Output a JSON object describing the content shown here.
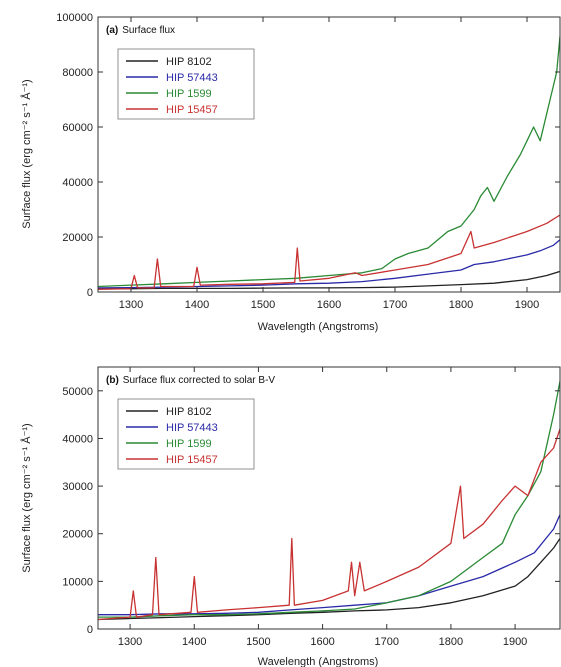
{
  "chart_data": [
    {
      "type": "line",
      "title": "(a) Surface flux",
      "title_prefix": "(a)",
      "title_text": "Surface flux",
      "xlabel": "Wavelength (Angstroms)",
      "ylabel": "Surface flux (erg cm⁻² s⁻¹ Å⁻¹)",
      "xlim": [
        1250,
        1950
      ],
      "ylim": [
        0,
        100000
      ],
      "x_ticks": [
        1300,
        1400,
        1500,
        1600,
        1700,
        1800,
        1900
      ],
      "y_ticks": [
        0,
        20000,
        40000,
        60000,
        80000,
        100000
      ],
      "legend_position": "top-left",
      "series": [
        {
          "name": "HIP 8102",
          "color": "#222222",
          "points": [
            [
              1250,
              1200
            ],
            [
              1300,
              1200
            ],
            [
              1350,
              1300
            ],
            [
              1400,
              1300
            ],
            [
              1450,
              1300
            ],
            [
              1500,
              1400
            ],
            [
              1550,
              1500
            ],
            [
              1600,
              1500
            ],
            [
              1650,
              1600
            ],
            [
              1700,
              1800
            ],
            [
              1750,
              2200
            ],
            [
              1800,
              2700
            ],
            [
              1850,
              3200
            ],
            [
              1900,
              4500
            ],
            [
              1930,
              6000
            ],
            [
              1950,
              7500
            ]
          ]
        },
        {
          "name": "HIP 57443",
          "color": "#2a2aa8",
          "points": [
            [
              1250,
              1500
            ],
            [
              1300,
              1600
            ],
            [
              1350,
              1800
            ],
            [
              1400,
              2000
            ],
            [
              1450,
              2200
            ],
            [
              1500,
              2500
            ],
            [
              1550,
              3000
            ],
            [
              1600,
              3200
            ],
            [
              1650,
              3800
            ],
            [
              1700,
              5000
            ],
            [
              1750,
              6500
            ],
            [
              1800,
              8000
            ],
            [
              1820,
              10000
            ],
            [
              1850,
              11000
            ],
            [
              1880,
              12500
            ],
            [
              1900,
              13500
            ],
            [
              1920,
              15000
            ],
            [
              1940,
              17000
            ],
            [
              1950,
              19000
            ]
          ]
        },
        {
          "name": "HIP 1599",
          "color": "#2a8a35",
          "points": [
            [
              1250,
              2000
            ],
            [
              1300,
              2500
            ],
            [
              1350,
              3000
            ],
            [
              1400,
              3500
            ],
            [
              1450,
              4000
            ],
            [
              1500,
              4500
            ],
            [
              1550,
              5000
            ],
            [
              1600,
              6000
            ],
            [
              1650,
              7000
            ],
            [
              1680,
              8500
            ],
            [
              1700,
              12000
            ],
            [
              1720,
              14000
            ],
            [
              1750,
              16000
            ],
            [
              1780,
              22000
            ],
            [
              1800,
              24000
            ],
            [
              1820,
              30000
            ],
            [
              1830,
              35000
            ],
            [
              1840,
              38000
            ],
            [
              1850,
              33000
            ],
            [
              1870,
              42000
            ],
            [
              1890,
              50000
            ],
            [
              1900,
              55000
            ],
            [
              1910,
              60000
            ],
            [
              1920,
              55000
            ],
            [
              1935,
              70000
            ],
            [
              1945,
              80000
            ],
            [
              1950,
              93000
            ]
          ]
        },
        {
          "name": "HIP 15457",
          "color": "#c83232",
          "points": [
            [
              1250,
              1000
            ],
            [
              1300,
              1200
            ],
            [
              1305,
              6000
            ],
            [
              1310,
              1500
            ],
            [
              1335,
              1500
            ],
            [
              1340,
              12000
            ],
            [
              1345,
              2000
            ],
            [
              1395,
              2000
            ],
            [
              1400,
              9000
            ],
            [
              1405,
              2500
            ],
            [
              1450,
              2800
            ],
            [
              1500,
              3000
            ],
            [
              1548,
              3500
            ],
            [
              1552,
              16000
            ],
            [
              1556,
              4000
            ],
            [
              1600,
              5000
            ],
            [
              1640,
              7000
            ],
            [
              1650,
              6000
            ],
            [
              1700,
              8000
            ],
            [
              1750,
              10000
            ],
            [
              1800,
              14000
            ],
            [
              1815,
              22000
            ],
            [
              1820,
              16000
            ],
            [
              1850,
              18000
            ],
            [
              1900,
              22000
            ],
            [
              1930,
              25000
            ],
            [
              1950,
              28000
            ]
          ]
        }
      ]
    },
    {
      "type": "line",
      "title": "(b) Surface flux corrected to solar B-V",
      "title_prefix": "(b)",
      "title_text": "Surface flux corrected to solar B-V",
      "xlabel": "Wavelength (Angstroms)",
      "ylabel": "Surface flux (erg cm⁻² s⁻¹ Å⁻¹)",
      "xlim": [
        1250,
        1970
      ],
      "ylim": [
        0,
        55000
      ],
      "x_ticks": [
        1300,
        1400,
        1500,
        1600,
        1700,
        1800,
        1900
      ],
      "y_ticks": [
        0,
        10000,
        20000,
        30000,
        40000,
        50000
      ],
      "legend_position": "top-left",
      "series": [
        {
          "name": "HIP 8102",
          "color": "#222222",
          "points": [
            [
              1250,
              2000
            ],
            [
              1300,
              2200
            ],
            [
              1350,
              2400
            ],
            [
              1400,
              2600
            ],
            [
              1450,
              2800
            ],
            [
              1500,
              3000
            ],
            [
              1550,
              3300
            ],
            [
              1600,
              3500
            ],
            [
              1650,
              3800
            ],
            [
              1700,
              4000
            ],
            [
              1750,
              4500
            ],
            [
              1800,
              5500
            ],
            [
              1850,
              7000
            ],
            [
              1900,
              9000
            ],
            [
              1920,
              11000
            ],
            [
              1940,
              14000
            ],
            [
              1960,
              17000
            ],
            [
              1970,
              19000
            ]
          ]
        },
        {
          "name": "HIP 57443",
          "color": "#2a2aa8",
          "points": [
            [
              1250,
              3000
            ],
            [
              1300,
              3000
            ],
            [
              1350,
              3200
            ],
            [
              1400,
              3200
            ],
            [
              1450,
              3300
            ],
            [
              1500,
              3500
            ],
            [
              1550,
              4000
            ],
            [
              1600,
              4500
            ],
            [
              1650,
              5000
            ],
            [
              1700,
              5500
            ],
            [
              1750,
              7000
            ],
            [
              1800,
              9000
            ],
            [
              1850,
              11000
            ],
            [
              1900,
              14000
            ],
            [
              1930,
              16000
            ],
            [
              1960,
              21000
            ],
            [
              1970,
              24000
            ]
          ]
        },
        {
          "name": "HIP 1599",
          "color": "#2a8a35",
          "points": [
            [
              1250,
              2500
            ],
            [
              1300,
              2500
            ],
            [
              1350,
              2800
            ],
            [
              1400,
              3000
            ],
            [
              1450,
              3000
            ],
            [
              1500,
              3200
            ],
            [
              1550,
              3500
            ],
            [
              1600,
              3800
            ],
            [
              1650,
              4200
            ],
            [
              1700,
              5500
            ],
            [
              1750,
              7000
            ],
            [
              1800,
              10000
            ],
            [
              1850,
              15000
            ],
            [
              1880,
              18000
            ],
            [
              1900,
              24000
            ],
            [
              1920,
              28000
            ],
            [
              1940,
              33000
            ],
            [
              1960,
              45000
            ],
            [
              1970,
              52000
            ]
          ]
        },
        {
          "name": "HIP 15457",
          "color": "#c83232",
          "points": [
            [
              1250,
              2000
            ],
            [
              1300,
              2500
            ],
            [
              1305,
              8000
            ],
            [
              1310,
              2500
            ],
            [
              1335,
              3000
            ],
            [
              1340,
              15000
            ],
            [
              1345,
              3000
            ],
            [
              1395,
              3500
            ],
            [
              1400,
              11000
            ],
            [
              1405,
              3500
            ],
            [
              1450,
              4000
            ],
            [
              1500,
              4500
            ],
            [
              1548,
              5000
            ],
            [
              1552,
              19000
            ],
            [
              1556,
              5000
            ],
            [
              1600,
              6000
            ],
            [
              1640,
              8000
            ],
            [
              1645,
              14000
            ],
            [
              1650,
              7000
            ],
            [
              1658,
              14000
            ],
            [
              1665,
              8000
            ],
            [
              1700,
              10000
            ],
            [
              1750,
              13000
            ],
            [
              1800,
              18000
            ],
            [
              1815,
              30000
            ],
            [
              1820,
              19000
            ],
            [
              1850,
              22000
            ],
            [
              1880,
              27000
            ],
            [
              1900,
              30000
            ],
            [
              1920,
              28000
            ],
            [
              1940,
              35000
            ],
            [
              1960,
              38000
            ],
            [
              1970,
              42000
            ]
          ]
        }
      ]
    }
  ]
}
